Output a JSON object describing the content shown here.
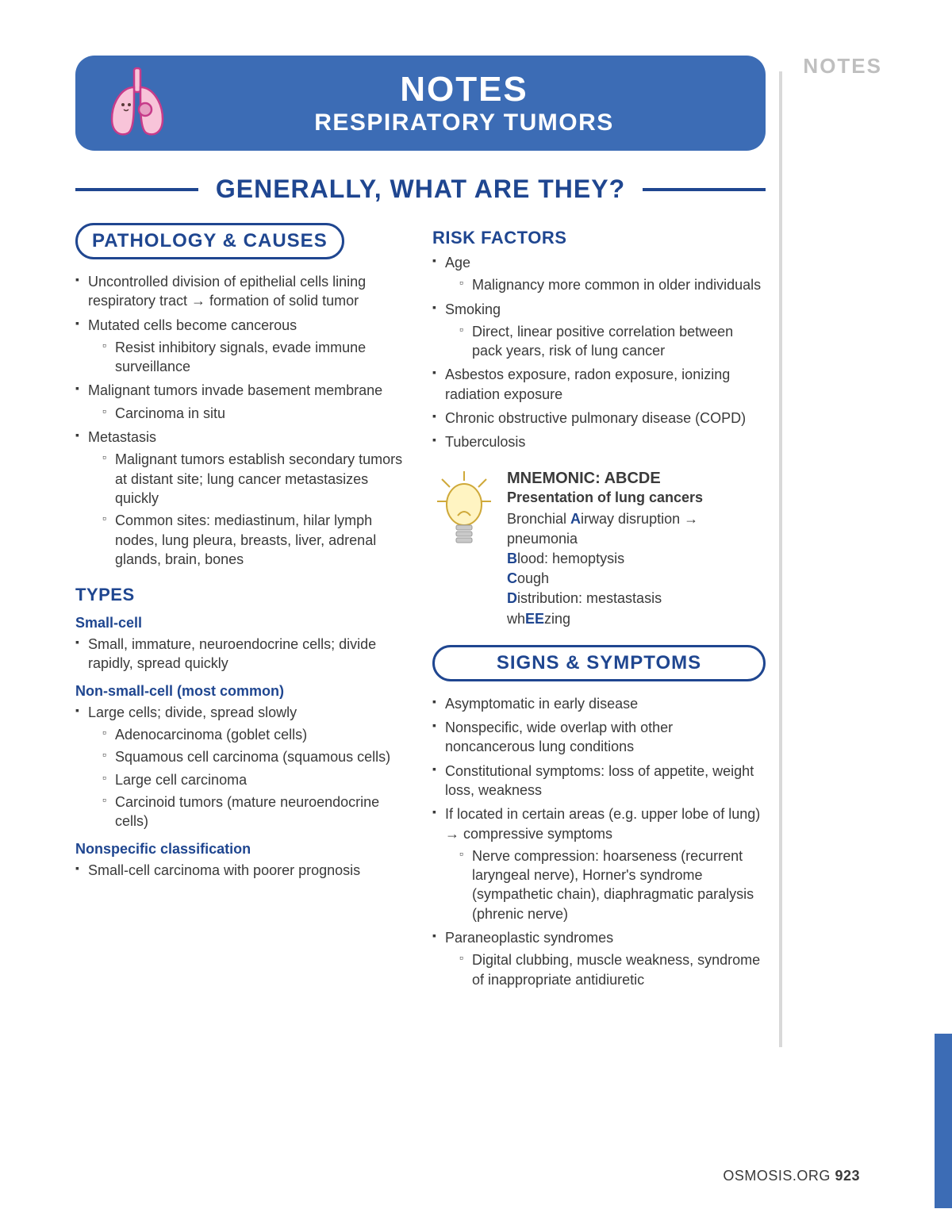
{
  "sideLabel": "NOTES",
  "banner": {
    "title": "NOTES",
    "subtitle": "RESPIRATORY TUMORS"
  },
  "sectionHeading": "GENERALLY, WHAT ARE THEY?",
  "leftCol": {
    "pill": "PATHOLOGY & CAUSES",
    "bullets": [
      {
        "t": "Uncontrolled division of epithelial cells lining respiratory tract → formation of solid tumor"
      },
      {
        "t": "Mutated cells become cancerous",
        "sub": [
          "Resist inhibitory signals, evade immune surveillance"
        ]
      },
      {
        "t": "Malignant tumors invade basement membrane",
        "sub": [
          "Carcinoma in situ"
        ]
      },
      {
        "t": "Metastasis",
        "sub": [
          "Malignant tumors establish secondary tumors at distant site; lung cancer metastasizes quickly",
          "Common sites: mediastinum, hilar lymph nodes, lung pleura, breasts, liver, adrenal glands, brain, bones"
        ]
      }
    ],
    "typesHeading": "TYPES",
    "typeGroups": [
      {
        "name": "Small-cell",
        "items": [
          {
            "t": "Small, immature, neuroendocrine cells; divide rapidly, spread quickly"
          }
        ]
      },
      {
        "name": "Non-small-cell (most common)",
        "items": [
          {
            "t": "Large cells; divide, spread slowly",
            "sub": [
              "Adenocarcinoma (goblet cells)",
              "Squamous cell carcinoma (squamous cells)",
              "Large cell carcinoma",
              "Carcinoid tumors (mature neuroendocrine cells)"
            ]
          }
        ]
      },
      {
        "name": "Nonspecific classification",
        "items": [
          {
            "t": "Small-cell carcinoma with poorer prognosis"
          }
        ]
      }
    ]
  },
  "rightCol": {
    "riskHeading": "RISK FACTORS",
    "riskBullets": [
      {
        "t": "Age",
        "sub": [
          "Malignancy more common in older individuals"
        ]
      },
      {
        "t": "Smoking",
        "sub": [
          "Direct, linear positive correlation between pack years, risk of lung cancer"
        ]
      },
      {
        "t": "Asbestos exposure, radon exposure, ionizing radiation exposure"
      },
      {
        "t": "Chronic obstructive pulmonary disease (COPD)"
      },
      {
        "t": "Tuberculosis"
      }
    ],
    "mnemonic": {
      "title": "MNEMONIC: ABCDE",
      "subtitle": "Presentation of lung cancers",
      "lines": [
        {
          "pre": "Bronchial ",
          "hi": "A",
          "post": "irway disruption → pneumonia"
        },
        {
          "pre": "",
          "hi": "B",
          "post": "lood: hemoptysis"
        },
        {
          "pre": "",
          "hi": "C",
          "post": "ough"
        },
        {
          "pre": "",
          "hi": "D",
          "post": "istribution: mestastasis"
        },
        {
          "pre": "wh",
          "hi": "EE",
          "post": "zing"
        }
      ]
    },
    "signsPill": "SIGNS & SYMPTOMS",
    "signsBullets": [
      {
        "t": "Asymptomatic in early disease"
      },
      {
        "t": "Nonspecific, wide overlap with other noncancerous lung conditions"
      },
      {
        "t": "Constitutional symptoms: loss of appetite, weight loss, weakness"
      },
      {
        "t": "If located in certain areas (e.g. upper lobe of lung) → compressive symptoms",
        "sub": [
          "Nerve compression: hoarseness (recurrent laryngeal nerve), Horner's syndrome (sympathetic chain), diaphragmatic paralysis (phrenic nerve)"
        ]
      },
      {
        "t": "Paraneoplastic syndromes",
        "sub": [
          "Digital clubbing, muscle weakness, syndrome of inappropriate antidiuretic"
        ]
      }
    ]
  },
  "footer": {
    "site": "OSMOSIS.ORG",
    "page": "923"
  },
  "colors": {
    "brandBlue": "#3c6cb5",
    "darkBlue": "#1f4690",
    "grey": "#bfbfbf",
    "lungFill": "#f8c4d9",
    "lungStroke": "#c73b8a",
    "bulbFill": "#fff4c2",
    "bulbStroke": "#cfa93a"
  }
}
